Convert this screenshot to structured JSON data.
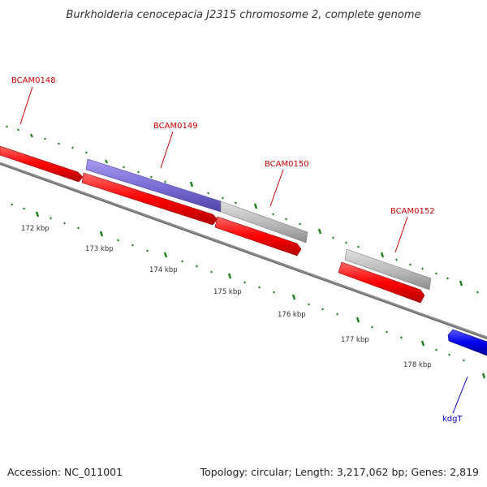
{
  "title": "Burkholderia cenocepacia J2315 chromosome 2, complete genome",
  "accession": "Accession: NC_011001",
  "summary": "Topology: circular; Length: 3,217,062 bp; Genes: 2,819",
  "colors": {
    "forward_cds": "#ff0000",
    "reverse_cds_blue": "#0000ee",
    "purple_cds": "#7b6fd8",
    "grey_cds": "#b8b8b8",
    "backbone": "#808080",
    "tick_green": "#1a7f1a",
    "forward_label": "#cc0000",
    "reverse_label": "#0000cc"
  },
  "scale_labels": [
    "172 kbp",
    "173 kbp",
    "174 kbp",
    "175 kbp",
    "176 kbp",
    "177 kbp",
    "178 kbp"
  ],
  "genes": [
    {
      "name": "BCAM0148",
      "strand": "forward"
    },
    {
      "name": "BCAM0149",
      "strand": "forward"
    },
    {
      "name": "BCAM0150",
      "strand": "forward"
    },
    {
      "name": "BCAM0152",
      "strand": "forward"
    },
    {
      "name": "kdgT",
      "strand": "reverse"
    }
  ]
}
